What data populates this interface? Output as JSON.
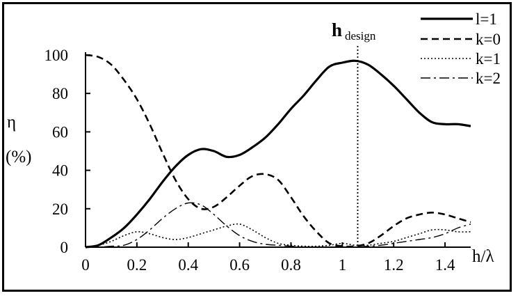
{
  "chart_data": {
    "type": "line",
    "xlabel": "h/λ",
    "ylabel_symbol": "η",
    "ylabel_unit": "(%)",
    "xlim": [
      0,
      1.5
    ],
    "ylim": [
      0,
      100
    ],
    "x_ticks": [
      0,
      0.2,
      0.4,
      0.6,
      0.8,
      1,
      1.2,
      1.4
    ],
    "x_tick_labels": [
      "0",
      "0.2",
      "0.4",
      "0.6",
      "0.8",
      "1",
      "1.2",
      "1.4"
    ],
    "y_ticks": [
      0,
      20,
      40,
      60,
      80,
      100
    ],
    "y_tick_labels": [
      "0",
      "20",
      "40",
      "60",
      "80",
      "100"
    ],
    "grid": false,
    "legend_position": "top-right",
    "annotation": {
      "main": "h",
      "sub": "design",
      "x": 1.06
    },
    "series": [
      {
        "name": "l=1",
        "style": "solid",
        "x": [
          0,
          0.05,
          0.1,
          0.15,
          0.2,
          0.25,
          0.3,
          0.35,
          0.4,
          0.45,
          0.5,
          0.55,
          0.6,
          0.65,
          0.7,
          0.75,
          0.8,
          0.85,
          0.9,
          0.95,
          1.0,
          1.05,
          1.1,
          1.15,
          1.2,
          1.25,
          1.3,
          1.35,
          1.4,
          1.45,
          1.5
        ],
        "values": [
          0,
          1,
          5,
          10,
          17,
          25,
          34,
          42,
          48,
          51,
          50,
          47,
          48,
          52,
          57,
          64,
          72,
          79,
          87,
          94,
          96,
          97,
          95,
          90,
          84,
          77,
          70,
          65,
          64,
          64,
          63
        ]
      },
      {
        "name": "k=0",
        "style": "dashed",
        "x": [
          0,
          0.05,
          0.1,
          0.15,
          0.2,
          0.25,
          0.3,
          0.35,
          0.4,
          0.45,
          0.5,
          0.55,
          0.6,
          0.65,
          0.7,
          0.75,
          0.8,
          0.85,
          0.9,
          0.95,
          1.0,
          1.05,
          1.1,
          1.15,
          1.2,
          1.25,
          1.3,
          1.35,
          1.4,
          1.45,
          1.5
        ],
        "values": [
          100,
          99,
          95,
          87,
          77,
          64,
          49,
          35,
          25,
          20,
          21,
          26,
          32,
          37,
          38,
          35,
          26,
          16,
          8,
          2,
          0.5,
          0.5,
          2,
          6,
          11,
          15,
          17,
          18,
          17,
          15,
          13
        ]
      },
      {
        "name": "k=1",
        "style": "dotted",
        "x": [
          0,
          0.05,
          0.1,
          0.15,
          0.2,
          0.25,
          0.3,
          0.35,
          0.4,
          0.45,
          0.5,
          0.55,
          0.6,
          0.65,
          0.7,
          0.75,
          0.8,
          0.85,
          0.9,
          0.95,
          1.0,
          1.05,
          1.1,
          1.15,
          1.2,
          1.25,
          1.3,
          1.35,
          1.4,
          1.45,
          1.5
        ],
        "values": [
          0,
          1,
          3,
          6,
          8,
          7,
          5,
          4,
          5,
          7,
          9,
          11,
          12,
          9,
          5,
          2,
          1,
          0.5,
          0.5,
          1,
          2,
          1,
          1,
          2,
          3,
          5,
          7,
          9,
          9,
          8,
          8
        ]
      },
      {
        "name": "k=2",
        "style": "dashdot",
        "x": [
          0,
          0.05,
          0.1,
          0.15,
          0.2,
          0.25,
          0.3,
          0.35,
          0.4,
          0.45,
          0.5,
          0.55,
          0.6,
          0.65,
          0.7,
          0.75,
          0.8,
          0.85,
          0.9,
          0.95,
          1.0,
          1.05,
          1.1,
          1.15,
          1.2,
          1.25,
          1.3,
          1.35,
          1.4,
          1.45,
          1.5
        ],
        "values": [
          0,
          0,
          0.5,
          1,
          4,
          9,
          15,
          20,
          23,
          22,
          17,
          11,
          6,
          3,
          1.5,
          1,
          0.5,
          0,
          0,
          0,
          0,
          0,
          0.5,
          1,
          2,
          3,
          4,
          5,
          7,
          10,
          12
        ]
      }
    ]
  }
}
